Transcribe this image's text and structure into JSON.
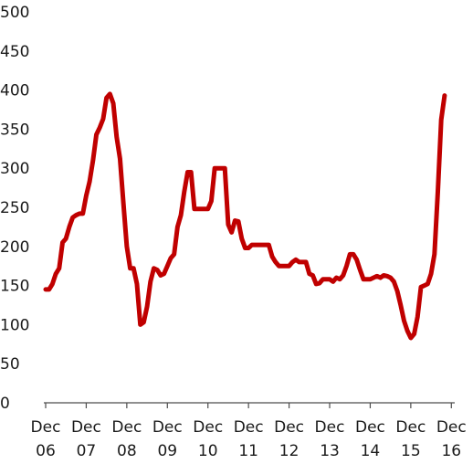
{
  "chart_data": {
    "type": "line",
    "title": "",
    "xlabel": "",
    "ylabel": "",
    "ylim": [
      0,
      500
    ],
    "yticks": [
      0,
      50,
      100,
      150,
      200,
      250,
      300,
      350,
      400,
      450,
      500
    ],
    "xlim": [
      0,
      121
    ],
    "xticks": [
      {
        "x": 0,
        "label": [
          "Dec",
          "06"
        ]
      },
      {
        "x": 12,
        "label": [
          "Dec",
          "07"
        ]
      },
      {
        "x": 24,
        "label": [
          "Dec",
          "08"
        ]
      },
      {
        "x": 36,
        "label": [
          "Dec",
          "09"
        ]
      },
      {
        "x": 48,
        "label": [
          "Dec",
          "10"
        ]
      },
      {
        "x": 60,
        "label": [
          "Dec",
          "11"
        ]
      },
      {
        "x": 72,
        "label": [
          "Dec",
          "12"
        ]
      },
      {
        "x": 84,
        "label": [
          "Dec",
          "13"
        ]
      },
      {
        "x": 96,
        "label": [
          "Dec",
          "14"
        ]
      },
      {
        "x": 108,
        "label": [
          "Dec",
          "15"
        ]
      },
      {
        "x": 120,
        "label": [
          "Dec",
          "16"
        ]
      }
    ],
    "grid": false,
    "legend": "none",
    "series": [
      {
        "color": "#c00000",
        "points": [
          [
            0,
            145
          ],
          [
            1,
            145
          ],
          [
            2,
            152
          ],
          [
            3,
            165
          ],
          [
            4,
            172
          ],
          [
            5,
            205
          ],
          [
            6,
            210
          ],
          [
            7,
            225
          ],
          [
            8,
            237
          ],
          [
            9,
            240
          ],
          [
            10,
            242
          ],
          [
            11,
            242
          ],
          [
            12,
            265
          ],
          [
            13,
            283
          ],
          [
            14,
            310
          ],
          [
            15,
            343
          ],
          [
            16,
            352
          ],
          [
            17,
            363
          ],
          [
            18,
            390
          ],
          [
            19,
            395
          ],
          [
            20,
            383
          ],
          [
            21,
            340
          ],
          [
            22,
            312
          ],
          [
            23,
            255
          ],
          [
            24,
            200
          ],
          [
            25,
            172
          ],
          [
            26,
            172
          ],
          [
            27,
            152
          ],
          [
            28,
            100
          ],
          [
            29,
            103
          ],
          [
            30,
            123
          ],
          [
            31,
            155
          ],
          [
            32,
            172
          ],
          [
            33,
            170
          ],
          [
            34,
            163
          ],
          [
            35,
            165
          ],
          [
            36,
            175
          ],
          [
            37,
            185
          ],
          [
            38,
            190
          ],
          [
            39,
            225
          ],
          [
            40,
            240
          ],
          [
            41,
            270
          ],
          [
            42,
            295
          ],
          [
            43,
            295
          ],
          [
            44,
            248
          ],
          [
            45,
            248
          ],
          [
            46,
            248
          ],
          [
            47,
            248
          ],
          [
            48,
            248
          ],
          [
            49,
            258
          ],
          [
            50,
            300
          ],
          [
            51,
            300
          ],
          [
            52,
            300
          ],
          [
            53,
            300
          ],
          [
            54,
            228
          ],
          [
            55,
            218
          ],
          [
            56,
            233
          ],
          [
            57,
            232
          ],
          [
            58,
            210
          ],
          [
            59,
            198
          ],
          [
            60,
            198
          ],
          [
            61,
            202
          ],
          [
            62,
            202
          ],
          [
            63,
            202
          ],
          [
            64,
            202
          ],
          [
            65,
            202
          ],
          [
            66,
            202
          ],
          [
            67,
            187
          ],
          [
            68,
            180
          ],
          [
            69,
            175
          ],
          [
            70,
            175
          ],
          [
            71,
            175
          ],
          [
            72,
            175
          ],
          [
            73,
            180
          ],
          [
            74,
            183
          ],
          [
            75,
            180
          ],
          [
            76,
            180
          ],
          [
            77,
            180
          ],
          [
            78,
            165
          ],
          [
            79,
            163
          ],
          [
            80,
            152
          ],
          [
            81,
            153
          ],
          [
            82,
            158
          ],
          [
            83,
            158
          ],
          [
            84,
            158
          ],
          [
            85,
            155
          ],
          [
            86,
            160
          ],
          [
            87,
            158
          ],
          [
            88,
            163
          ],
          [
            89,
            175
          ],
          [
            90,
            190
          ],
          [
            91,
            190
          ],
          [
            92,
            183
          ],
          [
            93,
            170
          ],
          [
            94,
            158
          ],
          [
            95,
            158
          ],
          [
            96,
            158
          ],
          [
            97,
            160
          ],
          [
            98,
            162
          ],
          [
            99,
            160
          ],
          [
            100,
            163
          ],
          [
            101,
            162
          ],
          [
            102,
            160
          ],
          [
            103,
            155
          ],
          [
            104,
            143
          ],
          [
            105,
            125
          ],
          [
            106,
            105
          ],
          [
            107,
            92
          ],
          [
            108,
            83
          ],
          [
            109,
            88
          ],
          [
            110,
            110
          ],
          [
            111,
            148
          ],
          [
            112,
            150
          ],
          [
            113,
            152
          ],
          [
            114,
            165
          ],
          [
            115,
            190
          ],
          [
            116,
            270
          ],
          [
            117,
            362
          ],
          [
            118,
            393
          ]
        ]
      }
    ]
  }
}
